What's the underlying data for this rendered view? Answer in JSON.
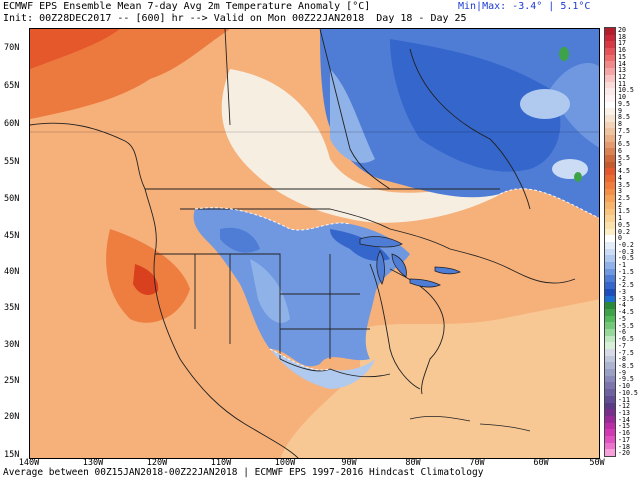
{
  "header": {
    "line1": "ECMWF EPS Ensemble Mean 7-day Avg 2m Temperature Anomaly [°C]",
    "line2": "Init: 00Z28DEC2017 -- [600] hr --> Valid on Mon 00Z22JAN2018  Day 18 - Day 25",
    "minmax": "Min|Max: -3.4° | 5.1°C"
  },
  "footer": "Average between 00Z15JAN2018-00Z22JAN2018 | ECMWF EPS 1997-2016 Hindcast Climatology",
  "latitude_labels": [
    "70N",
    "65N",
    "60N",
    "55N",
    "50N",
    "45N",
    "40N",
    "35N",
    "30N",
    "25N",
    "20N",
    "15N"
  ],
  "longitude_labels": [
    "140W",
    "130W",
    "120W",
    "110W",
    "100W",
    "90W",
    "80W",
    "70W",
    "60W",
    "50W"
  ],
  "colorbar": {
    "labels": [
      "20",
      "18",
      "17",
      "16",
      "15",
      "14",
      "13",
      "12",
      "11",
      "10.5",
      "10",
      "9.5",
      "9",
      "8.5",
      "8",
      "7.5",
      "7",
      "6.5",
      "6",
      "5.5",
      "5",
      "4.5",
      "4",
      "3.5",
      "3",
      "2.5",
      "2",
      "1.5",
      "1",
      "0.5",
      "0.2",
      "0",
      "-0.2",
      "-0.3",
      "-0.5",
      "-1",
      "-1.5",
      "-2",
      "-2.5",
      "-3",
      "-3.5",
      "-4",
      "-4.5",
      "-5",
      "-5.5",
      "-6",
      "-6.5",
      "-7",
      "-7.5",
      "-8",
      "-8.5",
      "-9",
      "-9.5",
      "-10",
      "-10.5",
      "-11",
      "-12",
      "-13",
      "-14",
      "-15",
      "-16",
      "-17",
      "-18",
      "-20"
    ],
    "colors": [
      "#b41e2c",
      "#c8283a",
      "#d83a44",
      "#e4525a",
      "#ee6c6c",
      "#f08a8a",
      "#f4a6a6",
      "#f7c3c3",
      "#fbdada",
      "#fce9e9",
      "#fff4f4",
      "#ffffff",
      "#fbf2ea",
      "#f6e3d2",
      "#f2d2b8",
      "#eec3a0",
      "#e9b088",
      "#e39a6e",
      "#d98254",
      "#cd6a3e",
      "#c45a2e",
      "#e3582c",
      "#ea6a34",
      "#f07c3e",
      "#f29048",
      "#f4a358",
      "#f6b46c",
      "#f8c480",
      "#f9d394",
      "#fbe1ac",
      "#fdeec8",
      "#ffffff",
      "#e4ecf8",
      "#cbdcf4",
      "#b0c9ef",
      "#8fb2e9",
      "#6f98e0",
      "#4f7dd6",
      "#3466cc",
      "#1c4fbe",
      "#1a6fd0",
      "#2a8a3a",
      "#3ea24a",
      "#54b85c",
      "#72c878",
      "#98d89c",
      "#bfe8c0",
      "#d8f0d8",
      "#d7dbe8",
      "#c2c8dc",
      "#adb4d0",
      "#9aa0c4",
      "#8a8bb8",
      "#7c76ac",
      "#6e62a0",
      "#624e92",
      "#5a3c84",
      "#7a2e8c",
      "#9a2a98",
      "#ba2ea6",
      "#d23ab4",
      "#e052c0",
      "#ec74cc",
      "#f6a0dc"
    ]
  }
}
